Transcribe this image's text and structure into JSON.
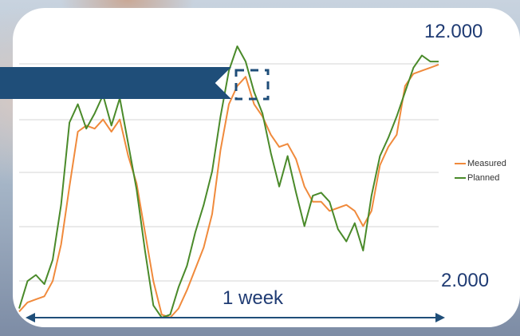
{
  "chart_data": {
    "type": "line",
    "title": "",
    "xlabel": "",
    "ylabel": "",
    "ylim": [
      2000,
      12000
    ],
    "y_tick_labels": [
      "12.000",
      "2.000"
    ],
    "grid": true,
    "legend_position": "right",
    "annotation": "1 week",
    "colors": {
      "Measured": "#f08a3c",
      "Planned": "#4a8a2a"
    },
    "x": [
      0,
      2,
      4,
      6,
      8,
      10,
      12,
      14,
      16,
      18,
      20,
      22,
      24,
      26,
      28,
      30,
      32,
      34,
      36,
      38,
      40,
      42,
      44,
      46,
      48,
      50,
      52,
      54,
      56,
      58,
      60,
      62,
      64,
      66,
      68,
      70,
      72,
      74,
      76,
      78,
      80,
      82,
      84,
      86,
      88,
      90,
      92,
      94,
      96,
      98,
      100
    ],
    "series": [
      {
        "name": "Measured",
        "values": [
          2200,
          2500,
          2600,
          2700,
          3200,
          4400,
          6300,
          8100,
          8300,
          8200,
          8500,
          8100,
          8500,
          7300,
          6400,
          4800,
          3200,
          2100,
          2000,
          2300,
          2900,
          3600,
          4300,
          5400,
          7500,
          9000,
          9600,
          9900,
          9000,
          8600,
          8000,
          7600,
          7700,
          7200,
          6300,
          5800,
          5800,
          5500,
          5600,
          5700,
          5500,
          5000,
          5500,
          7000,
          7600,
          8000,
          9600,
          10000,
          10100,
          10200,
          10300
        ]
      },
      {
        "name": "Planned",
        "values": [
          2300,
          3200,
          3400,
          3100,
          3900,
          5700,
          8400,
          9000,
          8200,
          8700,
          9300,
          8300,
          9200,
          7700,
          6200,
          4200,
          2400,
          2000,
          2100,
          3000,
          3700,
          4800,
          5700,
          6800,
          8600,
          10100,
          10900,
          10400,
          9400,
          8700,
          7400,
          6300,
          7300,
          6100,
          5000,
          6000,
          6100,
          5800,
          4900,
          4500,
          5100,
          4200,
          6000,
          7300,
          7900,
          8600,
          9400,
          10200,
          10600,
          10400,
          10400
        ]
      }
    ]
  }
}
